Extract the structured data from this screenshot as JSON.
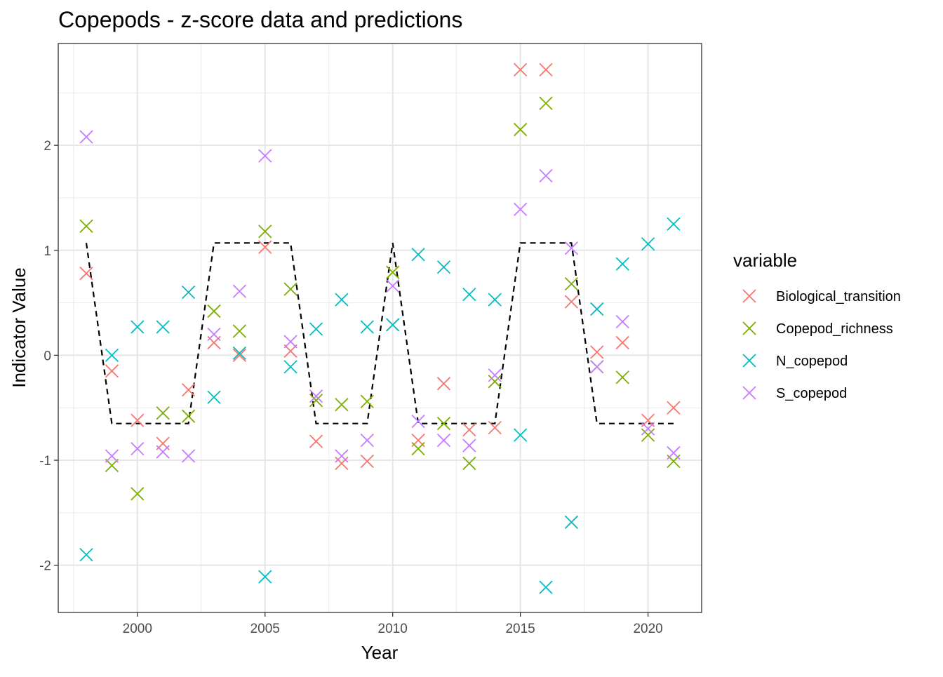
{
  "chart_data": {
    "type": "scatter",
    "title": "Copepods - z-score data and predictions",
    "xlabel": "Year",
    "ylabel": "Indicator Value",
    "xlim": [
      1996.9,
      2022.1
    ],
    "ylim": [
      -2.45,
      2.97
    ],
    "x_ticks": [
      2000,
      2005,
      2010,
      2015,
      2020
    ],
    "x_tick_labels": [
      "2000",
      "2005",
      "2010",
      "2015",
      "2020"
    ],
    "y_ticks": [
      -2,
      -1,
      0,
      1,
      2
    ],
    "y_tick_labels": [
      "-2",
      "-1",
      "0",
      "1",
      "2"
    ],
    "grid": true,
    "marker": "x",
    "legend": {
      "title": "variable",
      "position": "right"
    },
    "x": [
      1998,
      1999,
      2000,
      2001,
      2002,
      2003,
      2004,
      2005,
      2006,
      2007,
      2008,
      2009,
      2010,
      2011,
      2012,
      2013,
      2014,
      2015,
      2016,
      2017,
      2018,
      2019,
      2020,
      2021
    ],
    "series": [
      {
        "name": "Biological_transition",
        "color": "#F8766D",
        "values": [
          0.78,
          -0.15,
          -0.62,
          -0.84,
          -0.33,
          0.12,
          0.0,
          1.03,
          0.04,
          -0.82,
          -1.03,
          -1.01,
          0.29,
          -0.81,
          -0.27,
          -0.71,
          -0.69,
          2.72,
          2.72,
          0.51,
          0.03,
          0.12,
          -0.62,
          -0.5
        ]
      },
      {
        "name": "Copepod_richness",
        "color": "#7CAE00",
        "values": [
          1.23,
          -1.05,
          -1.32,
          -0.55,
          -0.58,
          0.42,
          0.23,
          1.18,
          0.63,
          -0.43,
          -0.47,
          -0.44,
          0.79,
          -0.89,
          -0.65,
          -1.03,
          -0.25,
          2.15,
          2.4,
          0.68,
          -0.11,
          -0.21,
          -0.76,
          -1.01
        ]
      },
      {
        "name": "N_copepod",
        "color": "#00BFC4",
        "values": [
          -1.9,
          0.0,
          0.27,
          0.27,
          0.6,
          -0.4,
          0.02,
          -2.11,
          -0.11,
          0.25,
          0.53,
          0.27,
          0.29,
          0.96,
          0.84,
          0.58,
          0.53,
          -0.76,
          -2.21,
          -1.59,
          0.44,
          0.87,
          1.06,
          1.25
        ]
      },
      {
        "name": "S_copepod",
        "color": "#C77CFF",
        "values": [
          2.08,
          -0.96,
          -0.89,
          -0.92,
          -0.96,
          0.2,
          0.61,
          1.9,
          0.13,
          -0.39,
          -0.96,
          -0.81,
          0.66,
          -0.63,
          -0.81,
          -0.86,
          -0.19,
          1.39,
          1.71,
          1.02,
          -0.11,
          0.32,
          -0.7,
          -0.93
        ]
      }
    ],
    "prediction": {
      "name": "predictions",
      "style": "dashed",
      "color": "#000000",
      "values": [
        1.07,
        -0.65,
        -0.65,
        -0.65,
        -0.65,
        1.07,
        1.07,
        1.07,
        1.07,
        -0.65,
        -0.65,
        -0.65,
        1.07,
        -0.65,
        -0.65,
        -0.65,
        -0.65,
        1.07,
        1.07,
        1.07,
        -0.65,
        -0.65,
        -0.65,
        -0.65
      ]
    }
  }
}
